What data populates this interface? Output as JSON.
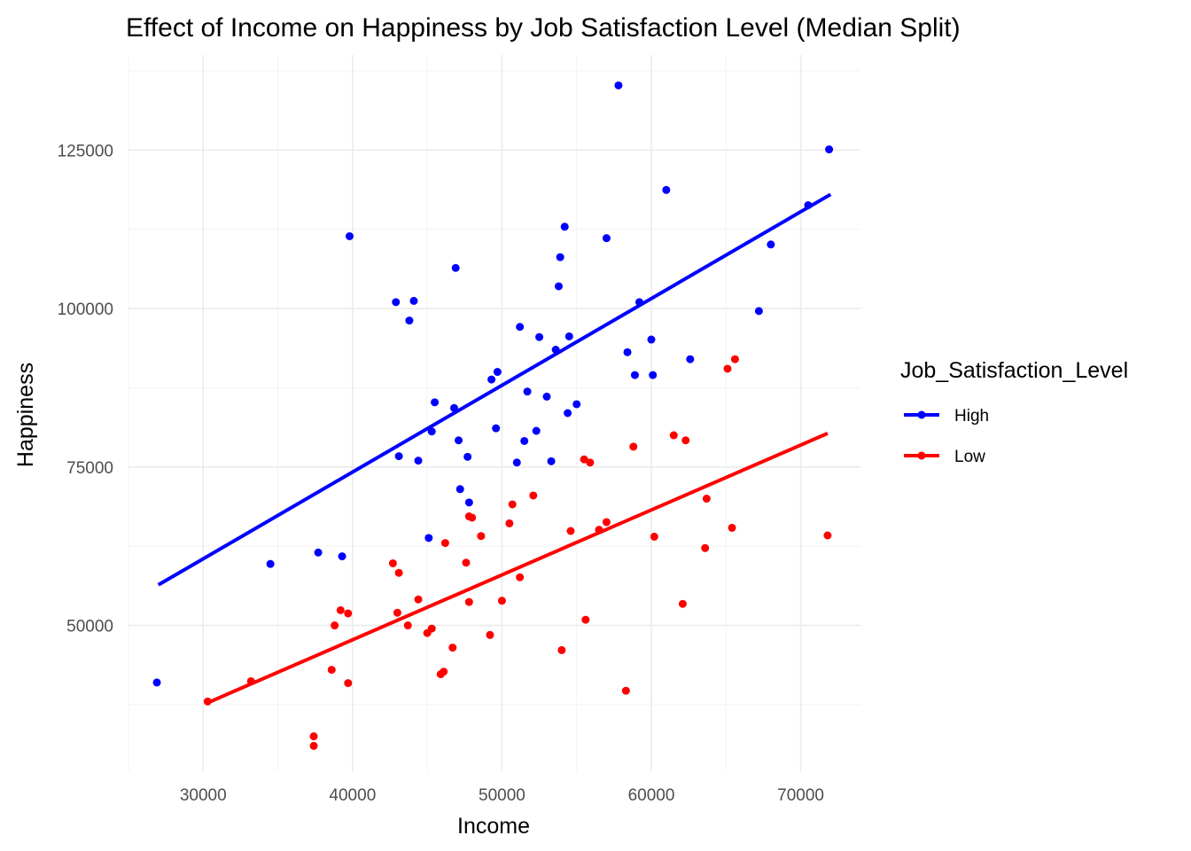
{
  "chart_data": {
    "type": "scatter",
    "title": "Effect of Income on Happiness by Job Satisfaction Level (Median Split)",
    "xlabel": "Income",
    "ylabel": "Happiness",
    "xlim": [
      25000,
      74000
    ],
    "ylim": [
      27000,
      140000
    ],
    "x_ticks": [
      30000,
      40000,
      50000,
      60000,
      70000
    ],
    "y_ticks": [
      50000,
      75000,
      100000,
      125000
    ],
    "grid": true,
    "legend": {
      "title": "Job_Satisfaction_Level",
      "position": "right"
    },
    "series": [
      {
        "name": "High",
        "color": "#0000ff",
        "points": [
          [
            26900,
            41000
          ],
          [
            34500,
            59700
          ],
          [
            37700,
            61500
          ],
          [
            39300,
            60900
          ],
          [
            39800,
            111400
          ],
          [
            42900,
            101000
          ],
          [
            43100,
            76700
          ],
          [
            43800,
            98100
          ],
          [
            44100,
            101200
          ],
          [
            44400,
            76000
          ],
          [
            45100,
            63800
          ],
          [
            45300,
            80600
          ],
          [
            45500,
            85200
          ],
          [
            46800,
            84300
          ],
          [
            46900,
            106400
          ],
          [
            47100,
            79200
          ],
          [
            47200,
            71500
          ],
          [
            47700,
            76600
          ],
          [
            47800,
            69400
          ],
          [
            49300,
            88800
          ],
          [
            49600,
            81100
          ],
          [
            49700,
            90000
          ],
          [
            51000,
            75700
          ],
          [
            51200,
            97100
          ],
          [
            51500,
            79100
          ],
          [
            51700,
            86900
          ],
          [
            52300,
            80700
          ],
          [
            52500,
            95500
          ],
          [
            53000,
            86100
          ],
          [
            53300,
            75900
          ],
          [
            53600,
            93500
          ],
          [
            53800,
            103500
          ],
          [
            53900,
            108100
          ],
          [
            54200,
            112900
          ],
          [
            54400,
            83500
          ],
          [
            54500,
            95600
          ],
          [
            55000,
            84900
          ],
          [
            57000,
            111100
          ],
          [
            57800,
            135200
          ],
          [
            58400,
            93100
          ],
          [
            58900,
            89500
          ],
          [
            59200,
            101000
          ],
          [
            60000,
            95100
          ],
          [
            60100,
            89500
          ],
          [
            61000,
            118700
          ],
          [
            62600,
            92000
          ],
          [
            67200,
            99600
          ],
          [
            68000,
            110100
          ],
          [
            70500,
            116300
          ],
          [
            71900,
            125100
          ]
        ],
        "fit": {
          "x": [
            27000,
            72000
          ],
          "y": [
            56400,
            118000
          ]
        }
      },
      {
        "name": "Low",
        "color": "#ff0000",
        "points": [
          [
            30300,
            38000
          ],
          [
            33200,
            41200
          ],
          [
            37400,
            32500
          ],
          [
            37400,
            31000
          ],
          [
            38600,
            43000
          ],
          [
            38800,
            50000
          ],
          [
            39200,
            52400
          ],
          [
            39700,
            51900
          ],
          [
            39700,
            40900
          ],
          [
            42700,
            59800
          ],
          [
            43000,
            52000
          ],
          [
            43100,
            58300
          ],
          [
            43700,
            50000
          ],
          [
            44400,
            54100
          ],
          [
            45000,
            48800
          ],
          [
            45300,
            49500
          ],
          [
            45900,
            42300
          ],
          [
            46100,
            42700
          ],
          [
            46200,
            63000
          ],
          [
            46700,
            46500
          ],
          [
            47600,
            59900
          ],
          [
            47800,
            67200
          ],
          [
            47800,
            53700
          ],
          [
            48000,
            67000
          ],
          [
            48600,
            64100
          ],
          [
            49200,
            48500
          ],
          [
            50000,
            53900
          ],
          [
            50500,
            66100
          ],
          [
            50700,
            69100
          ],
          [
            51200,
            57600
          ],
          [
            52100,
            70500
          ],
          [
            54000,
            46100
          ],
          [
            54600,
            64900
          ],
          [
            55500,
            76200
          ],
          [
            55600,
            50900
          ],
          [
            55900,
            75700
          ],
          [
            56500,
            65100
          ],
          [
            57000,
            66300
          ],
          [
            58300,
            39700
          ],
          [
            58800,
            78200
          ],
          [
            60200,
            64000
          ],
          [
            61500,
            80000
          ],
          [
            62100,
            53400
          ],
          [
            62300,
            79200
          ],
          [
            63600,
            62200
          ],
          [
            63700,
            70000
          ],
          [
            65100,
            90500
          ],
          [
            65400,
            65400
          ],
          [
            65600,
            92000
          ],
          [
            71800,
            64200
          ]
        ],
        "fit": {
          "x": [
            30300,
            71800
          ],
          "y": [
            37800,
            80300
          ]
        }
      }
    ]
  }
}
